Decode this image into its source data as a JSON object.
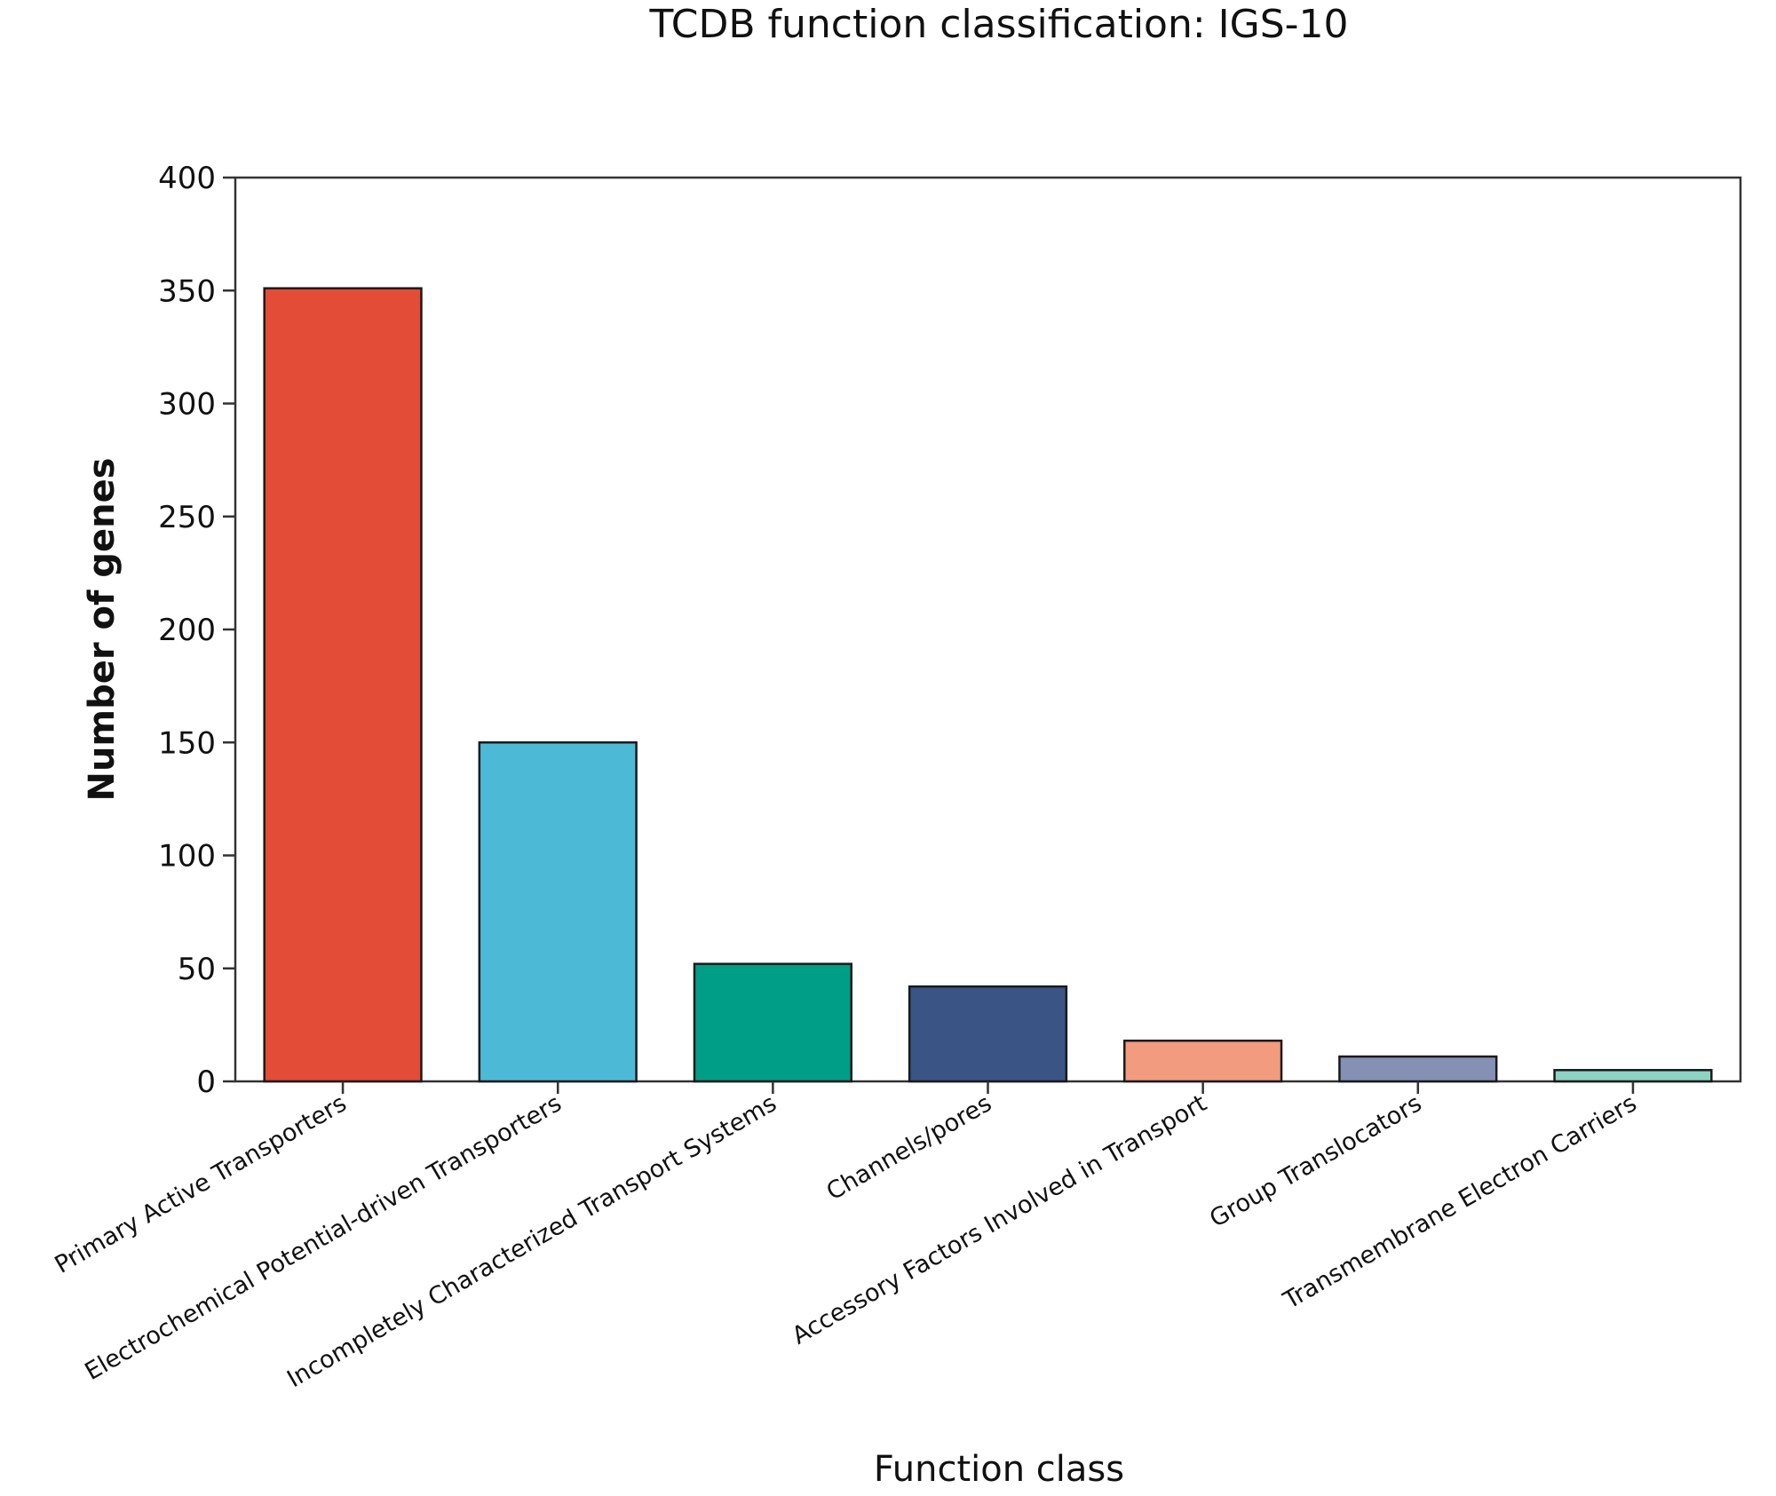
{
  "chart_data": {
    "type": "bar",
    "title": "TCDB function classification: IGS-10",
    "xlabel": "Function class",
    "ylabel": "Number of genes",
    "ylim": [
      0,
      400
    ],
    "yticks": [
      0,
      50,
      100,
      150,
      200,
      250,
      300,
      350,
      400
    ],
    "grid": false,
    "categories": [
      "Primary Active Transporters",
      "Electrochemical Potential-driven Transporters",
      "Incompletely Characterized Transport Systems",
      "Channels/pores",
      "Accessory Factors Involved in Transport",
      "Group Translocators",
      "Transmembrane Electron Carriers"
    ],
    "values": [
      351,
      150,
      52,
      42,
      18,
      11,
      5
    ],
    "colors": [
      "#e34c36",
      "#4cbad6",
      "#009d87",
      "#3b5486",
      "#f39b7f",
      "#8491b4",
      "#8dd3c4"
    ]
  }
}
